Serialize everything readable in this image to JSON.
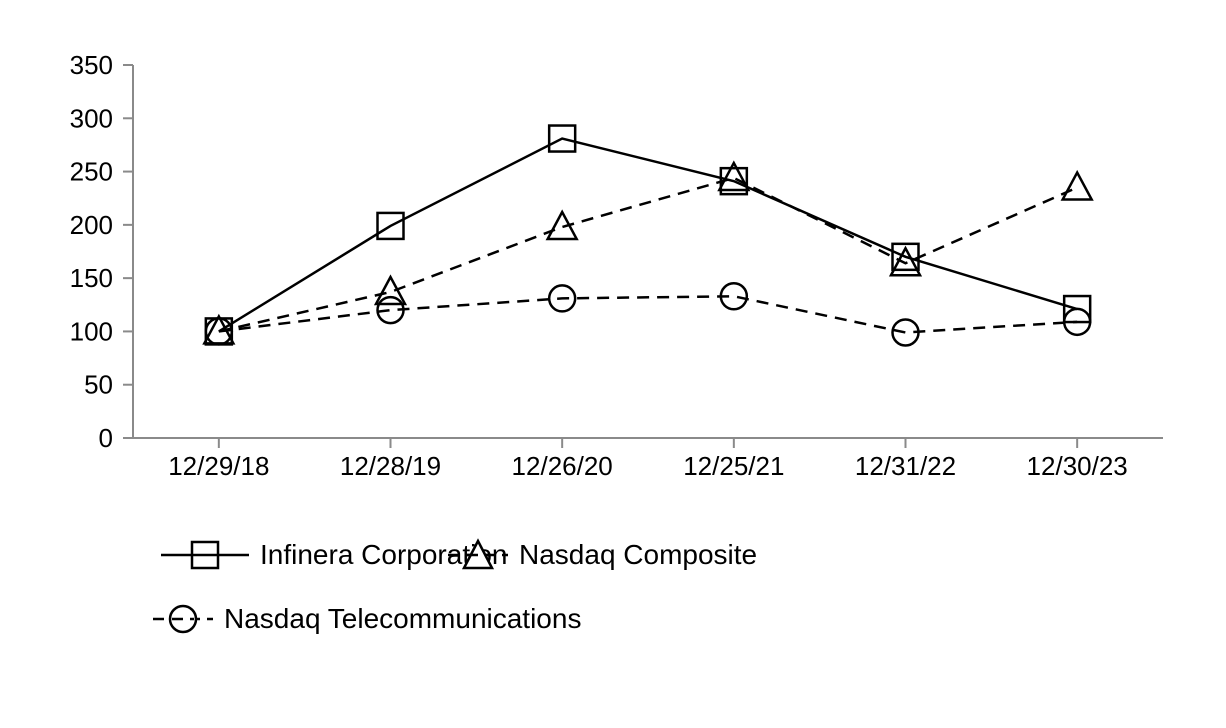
{
  "chart_data": {
    "type": "line",
    "title": "",
    "xlabel": "",
    "ylabel": "",
    "categories": [
      "12/29/18",
      "12/28/19",
      "12/26/20",
      "12/25/21",
      "12/31/22",
      "12/30/23"
    ],
    "series": [
      {
        "name": "Infinera Corporation",
        "marker": "square",
        "line_style": "solid",
        "color": "#000000",
        "values": [
          100,
          199,
          281,
          241,
          170,
          121
        ]
      },
      {
        "name": "Nasdaq Composite",
        "marker": "triangle",
        "line_style": "dashed",
        "color": "#000000",
        "values": [
          100,
          137,
          198,
          244,
          164,
          235
        ]
      },
      {
        "name": "Nasdaq Telecommunications",
        "marker": "circle",
        "line_style": "dashed",
        "color": "#000000",
        "values": [
          100,
          120,
          131,
          133,
          99,
          109
        ]
      }
    ],
    "ylim": [
      0,
      350
    ],
    "yticks": [
      0,
      50,
      100,
      150,
      200,
      250,
      300,
      350
    ],
    "grid": false,
    "legend_position": "below-left",
    "axis_color": "#8a8a8a",
    "text_color": "#000000",
    "marker_fill": "none"
  }
}
